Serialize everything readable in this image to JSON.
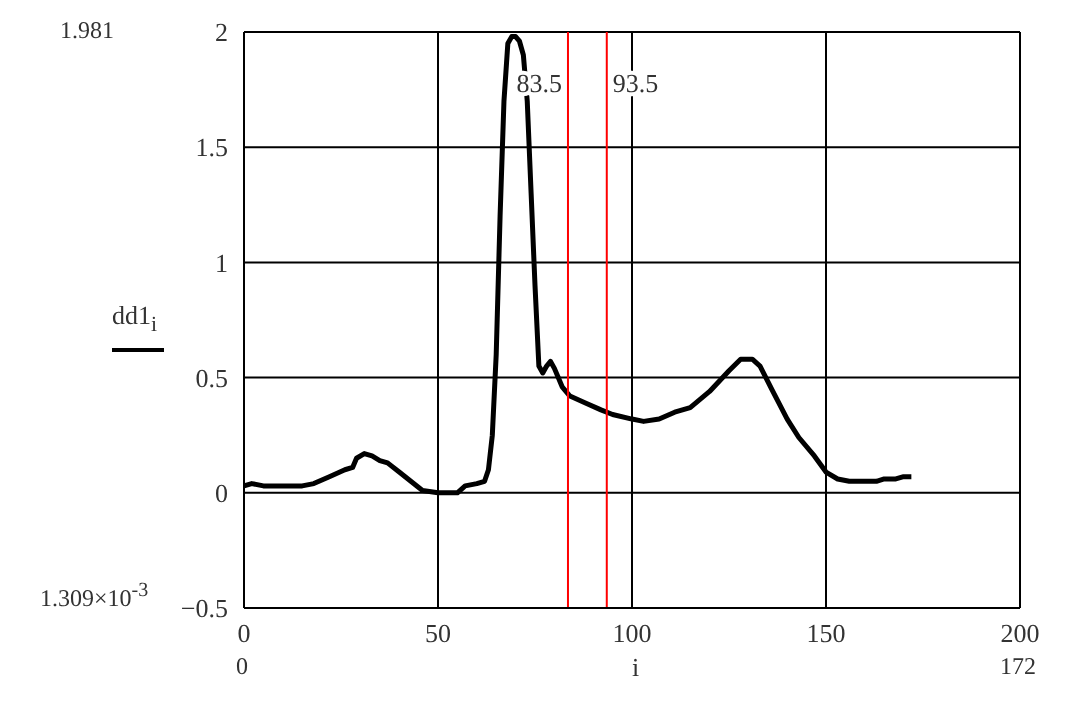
{
  "chart_data": {
    "type": "line",
    "xlabel": "i",
    "ylabel": "dd1$_{i}$",
    "x": [
      0,
      2,
      5,
      10,
      15,
      18,
      22,
      26,
      28,
      29,
      31,
      33,
      35,
      37,
      40,
      43,
      46,
      50,
      55,
      57,
      60,
      62,
      63,
      64,
      65,
      66,
      67,
      68,
      69,
      70,
      71,
      72,
      73,
      74,
      75,
      76,
      77,
      78,
      79,
      80,
      82,
      84,
      88,
      92,
      95,
      100,
      103,
      107,
      111,
      115,
      120,
      125,
      128,
      131,
      133,
      136,
      140,
      143,
      147,
      150,
      153,
      156,
      160,
      163,
      165,
      168,
      170,
      172
    ],
    "series": [
      {
        "color": "#000000",
        "values": [
          0.03,
          0.04,
          0.03,
          0.03,
          0.03,
          0.04,
          0.07,
          0.1,
          0.11,
          0.15,
          0.17,
          0.16,
          0.14,
          0.13,
          0.09,
          0.05,
          0.01,
          0.0,
          0.0,
          0.03,
          0.04,
          0.05,
          0.1,
          0.25,
          0.6,
          1.2,
          1.7,
          1.95,
          1.98,
          1.98,
          1.96,
          1.9,
          1.7,
          1.3,
          0.9,
          0.55,
          0.52,
          0.55,
          0.57,
          0.54,
          0.46,
          0.42,
          0.39,
          0.36,
          0.34,
          0.32,
          0.31,
          0.32,
          0.35,
          0.37,
          0.44,
          0.53,
          0.58,
          0.58,
          0.55,
          0.45,
          0.32,
          0.24,
          0.16,
          0.09,
          0.06,
          0.05,
          0.05,
          0.05,
          0.06,
          0.06,
          0.07,
          0.07
        ]
      }
    ],
    "xlim": [
      0,
      200
    ],
    "xticks": [
      0,
      50,
      100,
      150,
      200
    ],
    "ylim": [
      -0.5,
      2
    ],
    "yticks": [
      -0.5,
      0,
      0.5,
      1,
      1.5,
      2
    ],
    "grid": true,
    "marker": "none",
    "line_style": "solid",
    "ref_lines": [
      {
        "axis": "x",
        "value": 83.5,
        "label": "83.5",
        "color": "#ff0000"
      },
      {
        "axis": "x",
        "value": 93.5,
        "label": "93.5",
        "color": "#ff0000"
      }
    ],
    "annotations": [
      "1.981",
      "1.309×10$^{-3}$",
      "0",
      "172"
    ]
  }
}
